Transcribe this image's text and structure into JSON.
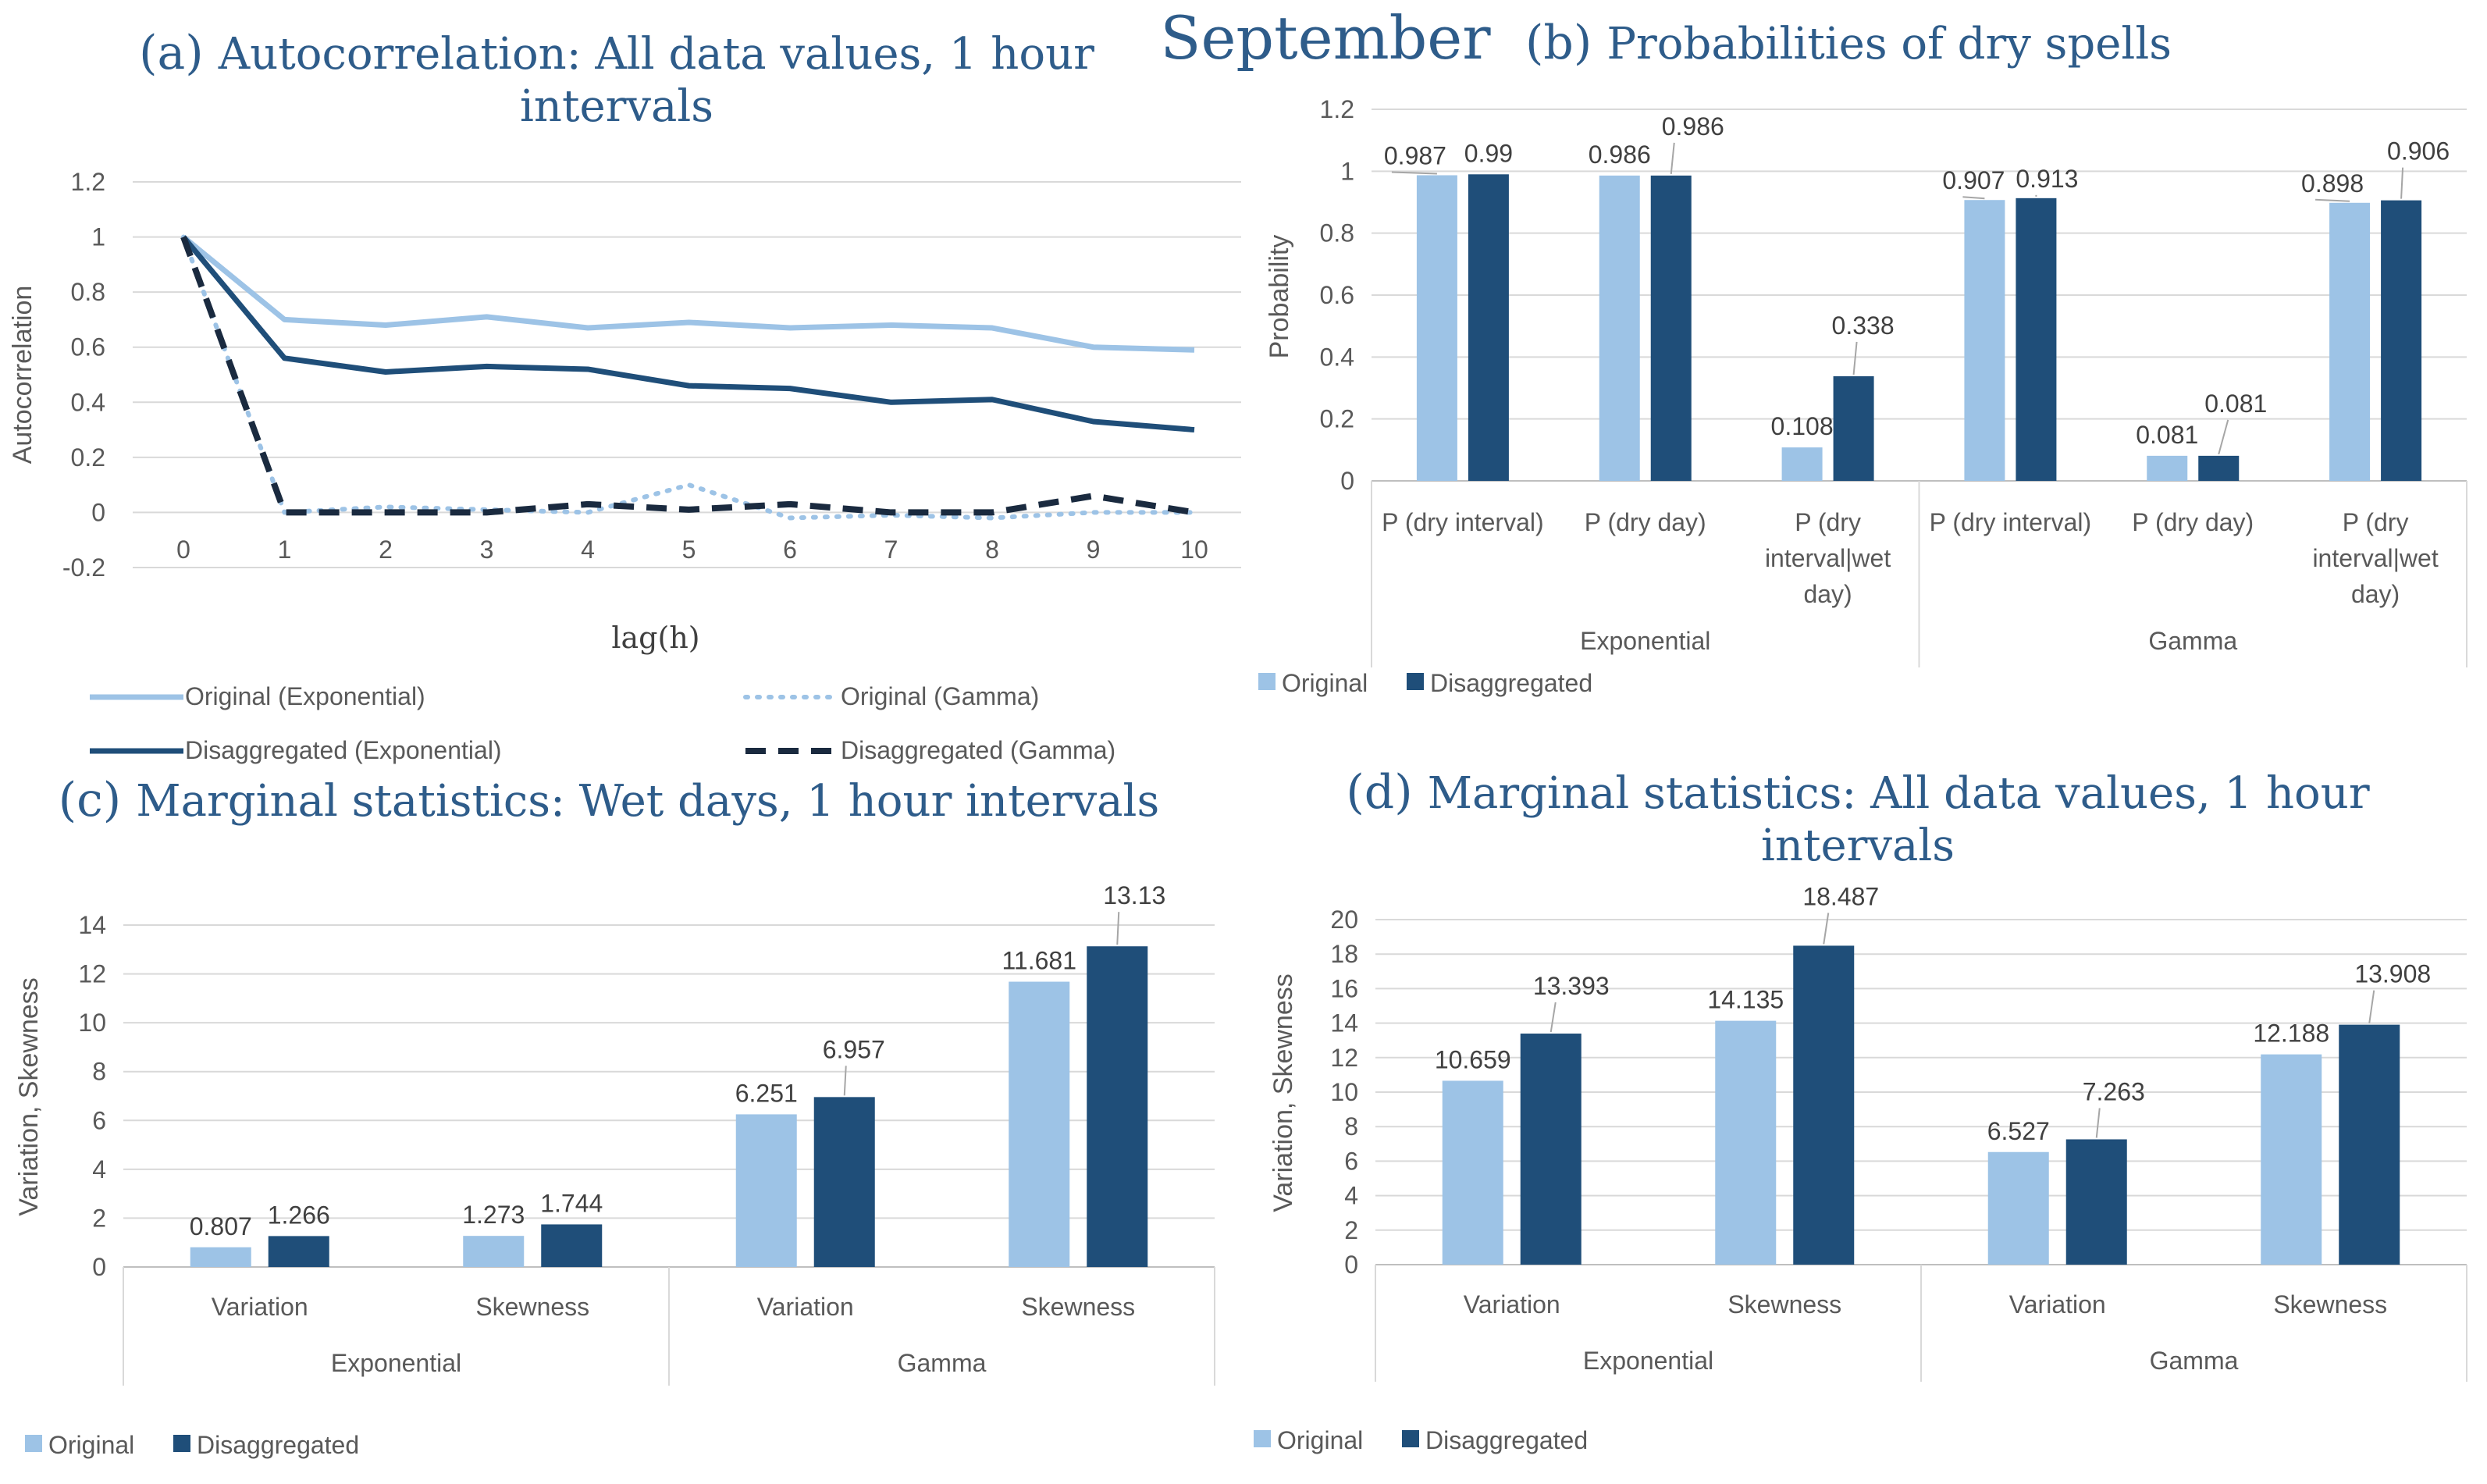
{
  "main_title": "September",
  "colors": {
    "original": "#9dc3e6",
    "disaggregated": "#1f4e79",
    "gamma_disaggregated": "#1a2a3f",
    "title": "#2e5c8a",
    "axis_text": "#595959",
    "grid": "#d9d9d9"
  },
  "chart_data": [
    {
      "id": "a",
      "type": "line",
      "title_letter": "(a)",
      "title_line1": "Autocorrelation: All data values, 1 hour",
      "title_line2": "intervals",
      "xlabel": "lag(h)",
      "ylabel": "Autocorrelation",
      "x": [
        0,
        1,
        2,
        3,
        4,
        5,
        6,
        7,
        8,
        9,
        10
      ],
      "ylim": [
        -0.2,
        1.2
      ],
      "yticks": [
        "1.2",
        "1",
        "0.8",
        "0.6",
        "0.4",
        "0.2",
        "0",
        "-0.2"
      ],
      "ytick_values": [
        1.2,
        1,
        0.8,
        0.6,
        0.4,
        0.2,
        0,
        -0.2
      ],
      "grid": true,
      "legend_position": "bottom",
      "series": [
        {
          "name": "Original (Exponential)",
          "style": "solid-light",
          "values": [
            1,
            0.7,
            0.68,
            0.71,
            0.67,
            0.69,
            0.67,
            0.68,
            0.67,
            0.6,
            0.59
          ]
        },
        {
          "name": "Original (Gamma)",
          "style": "dotted-light",
          "values": [
            1,
            0.0,
            0.02,
            0.01,
            0.0,
            0.1,
            -0.02,
            -0.01,
            -0.02,
            0.0,
            0.0
          ]
        },
        {
          "name": "Disaggregated (Exponential)",
          "style": "solid-dark",
          "values": [
            1,
            0.56,
            0.51,
            0.53,
            0.52,
            0.46,
            0.45,
            0.4,
            0.41,
            0.33,
            0.3
          ]
        },
        {
          "name": "Disaggregated (Gamma)",
          "style": "dashed-dark",
          "values": [
            1,
            0.0,
            0.0,
            0.0,
            0.03,
            0.01,
            0.03,
            0.0,
            0.0,
            0.06,
            0.0
          ]
        }
      ]
    },
    {
      "id": "b",
      "type": "bar",
      "title_letter": "(b)",
      "title_line1": "Probabilities of dry spells",
      "ylabel": "Probability",
      "ylim": [
        0,
        1.2
      ],
      "yticks": [
        "1.2",
        "1",
        "0.8",
        "0.6",
        "0.4",
        "0.2",
        "0"
      ],
      "ytick_values": [
        1.2,
        1,
        0.8,
        0.6,
        0.4,
        0.2,
        0
      ],
      "grid": true,
      "legend_position": "bottom-left",
      "groups": [
        "Exponential",
        "Gamma"
      ],
      "categories": [
        [
          "P (dry interval)"
        ],
        [
          "P (dry day)"
        ],
        [
          "P (dry",
          "interval|wet",
          "day)"
        ],
        [
          "P (dry interval)"
        ],
        [
          "P (dry day)"
        ],
        [
          "P (dry",
          "interval|wet",
          "day)"
        ]
      ],
      "series": [
        {
          "name": "Original",
          "values": [
            0.987,
            0.986,
            0.108,
            0.907,
            0.081,
            0.898
          ],
          "labels": [
            "0.987",
            "0.986",
            "0.108",
            "0.907",
            "0.081",
            "0.898"
          ]
        },
        {
          "name": "Disaggregated",
          "values": [
            0.99,
            0.986,
            0.338,
            0.913,
            0.081,
            0.906
          ],
          "labels": [
            "0.99",
            "0.986",
            "0.338",
            "0.913",
            "0.081",
            "0.906"
          ]
        }
      ]
    },
    {
      "id": "c",
      "type": "bar",
      "title_letter": "(c)",
      "title_line1": "Marginal statistics: Wet days, 1 hour intervals",
      "ylabel": "Variation, Skewness",
      "ylim": [
        0,
        14
      ],
      "yticks": [
        "14",
        "12",
        "10",
        "8",
        "6",
        "4",
        "2",
        "0"
      ],
      "ytick_values": [
        14,
        12,
        10,
        8,
        6,
        4,
        2,
        0
      ],
      "grid": true,
      "legend_position": "bottom-left",
      "groups": [
        "Exponential",
        "Gamma"
      ],
      "categories": [
        [
          "Variation"
        ],
        [
          "Skewness"
        ],
        [
          "Variation"
        ],
        [
          "Skewness"
        ]
      ],
      "series": [
        {
          "name": "Original",
          "values": [
            0.807,
            1.273,
            6.251,
            11.681
          ],
          "labels": [
            "0.807",
            "1.273",
            "6.251",
            "11.681"
          ]
        },
        {
          "name": "Disaggregated",
          "values": [
            1.266,
            1.744,
            6.957,
            13.13
          ],
          "labels": [
            "1.266",
            "1.744",
            "6.957",
            "13.13"
          ]
        }
      ]
    },
    {
      "id": "d",
      "type": "bar",
      "title_letter": "(d)",
      "title_line1": "Marginal statistics: All data values, 1 hour",
      "title_line2": "intervals",
      "ylabel": "Variation, Skewness",
      "ylim": [
        0,
        20
      ],
      "yticks": [
        "20",
        "18",
        "16",
        "14",
        "12",
        "10",
        "8",
        "6",
        "4",
        "2",
        "0"
      ],
      "ytick_values": [
        20,
        18,
        16,
        14,
        12,
        10,
        8,
        6,
        4,
        2,
        0
      ],
      "grid": true,
      "legend_position": "bottom-left",
      "groups": [
        "Exponential",
        "Gamma"
      ],
      "categories": [
        [
          "Variation"
        ],
        [
          "Skewness"
        ],
        [
          "Variation"
        ],
        [
          "Skewness"
        ]
      ],
      "series": [
        {
          "name": "Original",
          "values": [
            10.659,
            14.135,
            6.527,
            12.188
          ],
          "labels": [
            "10.659",
            "14.135",
            "6.527",
            "12.188"
          ]
        },
        {
          "name": "Disaggregated",
          "values": [
            13.393,
            18.487,
            7.263,
            13.908
          ],
          "labels": [
            "13.393",
            "18.487",
            "7.263",
            "13.908"
          ]
        }
      ]
    }
  ]
}
